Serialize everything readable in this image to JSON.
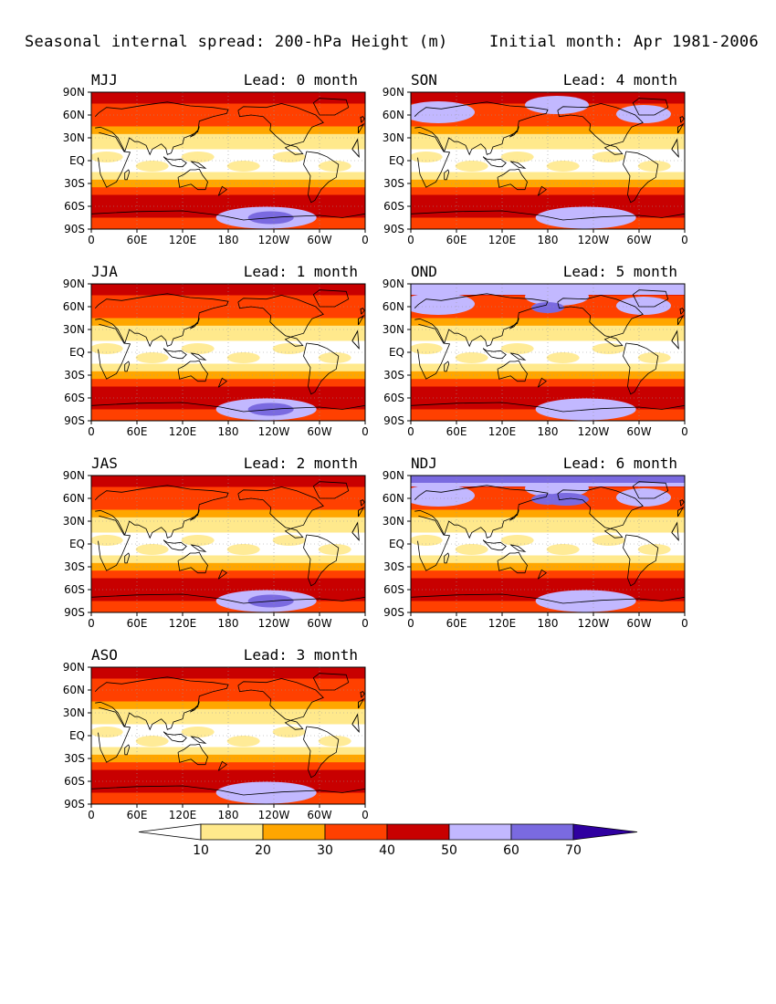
{
  "title": {
    "left": "Seasonal internal spread: 200-hPa Height (m)",
    "right": "Initial month: Apr 1981-2006"
  },
  "axes": {
    "lat_labels": [
      "90N",
      "60N",
      "30N",
      "EQ",
      "30S",
      "60S",
      "90S"
    ],
    "lon_labels": [
      "0",
      "60E",
      "120E",
      "180",
      "120W",
      "60W",
      "0"
    ]
  },
  "panels": [
    {
      "season": "MJJ",
      "lead": "Lead: 0 month",
      "stormy_north": 0,
      "stormy_south": 2
    },
    {
      "season": "JJA",
      "lead": "Lead: 1 month",
      "stormy_north": 0,
      "stormy_south": 2
    },
    {
      "season": "JAS",
      "lead": "Lead: 2 month",
      "stormy_north": 0,
      "stormy_south": 2
    },
    {
      "season": "ASO",
      "lead": "Lead: 3 month",
      "stormy_north": 0,
      "stormy_south": 1
    },
    {
      "season": "SON",
      "lead": "Lead: 4 month",
      "stormy_north": 1,
      "stormy_south": 1
    },
    {
      "season": "OND",
      "lead": "Lead: 5 month",
      "stormy_north": 2,
      "stormy_south": 1
    },
    {
      "season": "NDJ",
      "lead": "Lead: 6 month",
      "stormy_north": 3,
      "stormy_south": 1
    }
  ],
  "colorbar": {
    "labels": [
      "10",
      "20",
      "30",
      "40",
      "50",
      "60",
      "70"
    ],
    "colors": [
      "#ffffff",
      "#ffe98c",
      "#ffa600",
      "#ff4000",
      "#c80000",
      "#c2b8ff",
      "#7a6ae0",
      "#2f00a0"
    ]
  }
}
